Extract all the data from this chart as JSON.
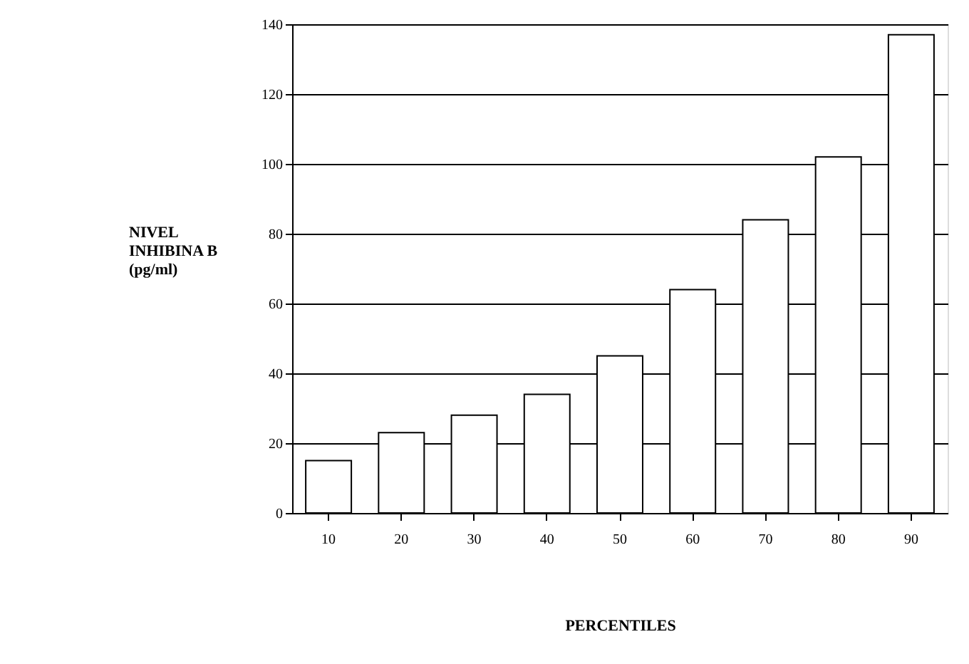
{
  "chart_data": {
    "type": "bar",
    "xlabel": "PERCENTILES",
    "ylabel": "NIVEL\nINHIBINA B\n\n(pg/ml)",
    "categories": [
      "10",
      "20",
      "30",
      "40",
      "50",
      "60",
      "70",
      "80",
      "90"
    ],
    "values": [
      15,
      23,
      28,
      34,
      45,
      64,
      84,
      102,
      137
    ],
    "color": "#ffffff",
    "ylim": [
      0,
      140
    ],
    "yticks": [
      0,
      20,
      40,
      60,
      80,
      100,
      120,
      140
    ],
    "grid": "y"
  }
}
